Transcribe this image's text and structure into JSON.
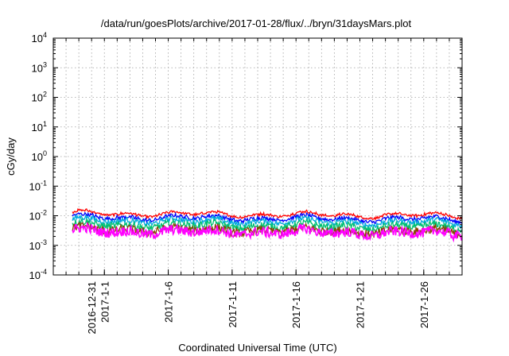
{
  "chart_data": {
    "type": "line",
    "title": "/data/run/goesPlots/archive/2017-01-28/flux/../bryn/31daysMars.plot",
    "xlabel": "Coordinated Universal Time (UTC)",
    "ylabel": "cGy/day",
    "yscale": "log",
    "ylim_exponents": [
      -4,
      4
    ],
    "y_ticks": [
      {
        "base": "10",
        "exp": "-4"
      },
      {
        "base": "10",
        "exp": "-3"
      },
      {
        "base": "10",
        "exp": "-2"
      },
      {
        "base": "10",
        "exp": "-1"
      },
      {
        "base": "10",
        "exp": "0"
      },
      {
        "base": "10",
        "exp": "1"
      },
      {
        "base": "10",
        "exp": "2"
      },
      {
        "base": "10",
        "exp": "3"
      },
      {
        "base": "10",
        "exp": "4"
      }
    ],
    "xlim": [
      "2016-12-28",
      "2017-01-29"
    ],
    "x_ticks": [
      {
        "date": "2016-12-31",
        "label": "2016-12-31"
      },
      {
        "date": "2017-01-01",
        "label": "2017-1-1"
      },
      {
        "date": "2017-01-06",
        "label": "2017-1-6"
      },
      {
        "date": "2017-01-11",
        "label": "2017-1-11"
      },
      {
        "date": "2017-01-16",
        "label": "2017-1-16"
      },
      {
        "date": "2017-01-21",
        "label": "2017-1-21"
      },
      {
        "date": "2017-01-26",
        "label": "2017-1-26"
      }
    ],
    "grid": true,
    "series": [
      {
        "color": "#ff0000",
        "typical_value": 0.012
      },
      {
        "color": "#0000ff",
        "typical_value": 0.009
      },
      {
        "color": "#00aadd",
        "typical_value": 0.007
      },
      {
        "color": "#00c070",
        "typical_value": 0.005
      },
      {
        "color": "#884400",
        "typical_value": 0.0035
      },
      {
        "color": "#ff00ff",
        "typical_value": 0.003
      }
    ]
  }
}
